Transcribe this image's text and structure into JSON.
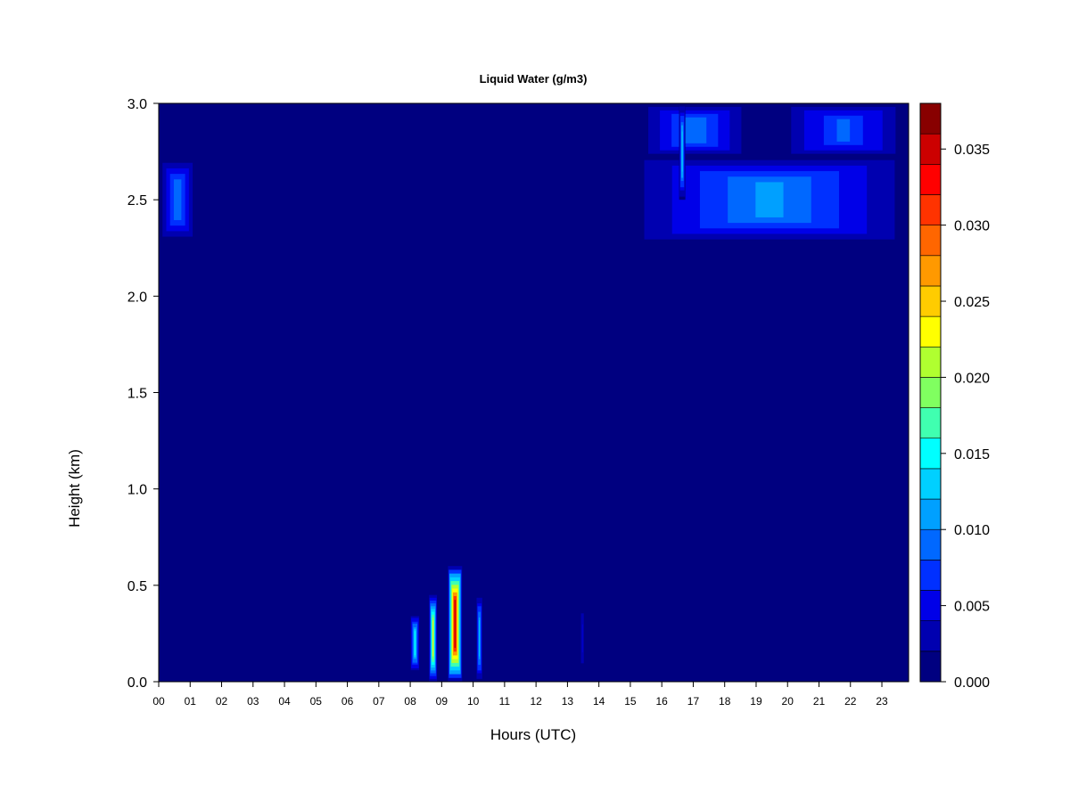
{
  "chart_data": {
    "type": "heatmap",
    "title": "Liquid Water (g/m3)",
    "xlabel": "Hours (UTC)",
    "ylabel": "Height (km)",
    "xlim": [
      0,
      23.85
    ],
    "ylim": [
      0.0,
      3.0
    ],
    "x_ticks": [
      "00",
      "01",
      "02",
      "03",
      "04",
      "05",
      "06",
      "07",
      "08",
      "09",
      "10",
      "11",
      "12",
      "13",
      "14",
      "15",
      "16",
      "17",
      "18",
      "19",
      "20",
      "21",
      "22",
      "23"
    ],
    "y_ticks": [
      "0.0",
      "0.5",
      "1.0",
      "1.5",
      "2.0",
      "2.5",
      "3.0"
    ],
    "colorbar": {
      "min": 0.0,
      "max": 0.038,
      "ticks": [
        "0.000",
        "0.005",
        "0.010",
        "0.015",
        "0.020",
        "0.025",
        "0.030",
        "0.035"
      ],
      "colors": [
        "#000080",
        "#0000b0",
        "#0000e8",
        "#0030ff",
        "#0068ff",
        "#00a0ff",
        "#00d0ff",
        "#00ffff",
        "#40ffb0",
        "#80ff60",
        "#b0ff30",
        "#ffff00",
        "#ffcc00",
        "#ff9900",
        "#ff6600",
        "#ff3300",
        "#ff0000",
        "#cc0000",
        "#880000"
      ]
    },
    "background_value": 0.0,
    "features": [
      {
        "x0": 0.0,
        "x1": 1.2,
        "y0": 2.28,
        "y1": 2.72,
        "peak": 0.009
      },
      {
        "x0": 15.0,
        "x1": 23.85,
        "y0": 2.28,
        "y1": 2.72,
        "peak": 0.011
      },
      {
        "x0": 15.2,
        "x1": 18.9,
        "y0": 2.72,
        "y1": 3.0,
        "peak": 0.009
      },
      {
        "x0": 19.7,
        "x1": 23.85,
        "y0": 2.72,
        "y1": 3.0,
        "peak": 0.008
      },
      {
        "x0": 16.55,
        "x1": 16.75,
        "y0": 2.5,
        "y1": 3.0,
        "peak": 0.013
      },
      {
        "x0": 8.0,
        "x1": 8.3,
        "y0": 0.05,
        "y1": 0.35,
        "peak": 0.014
      },
      {
        "x0": 8.6,
        "x1": 8.85,
        "y0": 0.0,
        "y1": 0.45,
        "peak": 0.022
      },
      {
        "x0": 9.2,
        "x1": 9.65,
        "y0": 0.0,
        "y1": 0.6,
        "peak": 0.034
      },
      {
        "x0": 10.1,
        "x1": 10.3,
        "y0": 0.0,
        "y1": 0.45,
        "peak": 0.012
      },
      {
        "x0": 13.4,
        "x1": 13.55,
        "y0": 0.05,
        "y1": 0.4,
        "peak": 0.004
      }
    ]
  }
}
